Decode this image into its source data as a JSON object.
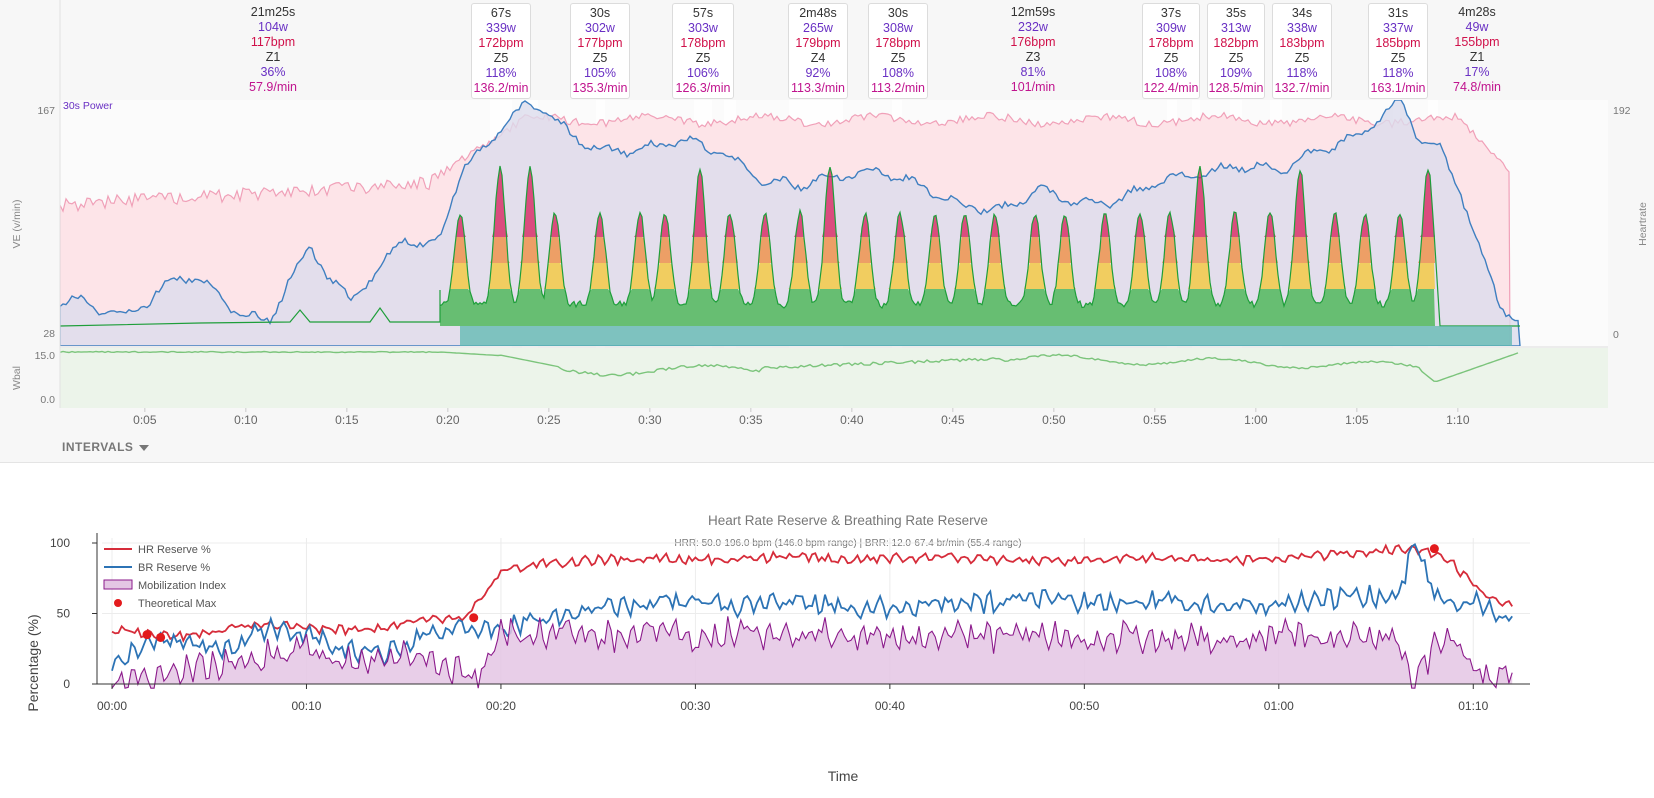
{
  "top_chart": {
    "power_label": "30s Power",
    "ve_axis_label": "VE (v/min)",
    "hr_axis_label": "Heartrate",
    "wbal_axis_label": "Wbal",
    "ve_ticks": [
      "167",
      "28"
    ],
    "hr_ticks": [
      "192",
      "0"
    ],
    "wbal_ticks": [
      "15.0",
      "0.0"
    ],
    "x_ticks": [
      "0:05",
      "0:10",
      "0:15",
      "0:20",
      "0:25",
      "0:30",
      "0:35",
      "0:40",
      "0:45",
      "0:50",
      "0:55",
      "1:00",
      "1:05",
      "1:10"
    ],
    "intervals_button": "INTERVALS"
  },
  "intervals": [
    {
      "duration": "21m25s",
      "watts": "104w",
      "hr": "117bpm",
      "zone": "Z1",
      "pct": "36%",
      "rate": "57.9/min"
    },
    {
      "duration": "67s",
      "watts": "339w",
      "hr": "172bpm",
      "zone": "Z5",
      "pct": "118%",
      "rate": "136.2/min"
    },
    {
      "duration": "30s",
      "watts": "302w",
      "hr": "177bpm",
      "zone": "Z5",
      "pct": "105%",
      "rate": "135.3/min"
    },
    {
      "duration": "57s",
      "watts": "303w",
      "hr": "178bpm",
      "zone": "Z5",
      "pct": "106%",
      "rate": "126.3/min"
    },
    {
      "duration": "2m48s",
      "watts": "265w",
      "hr": "179bpm",
      "zone": "Z4",
      "pct": "92%",
      "rate": "113.3/min"
    },
    {
      "duration": "30s",
      "watts": "308w",
      "hr": "178bpm",
      "zone": "Z5",
      "pct": "108%",
      "rate": "113.2/min"
    },
    {
      "duration": "12m59s",
      "watts": "232w",
      "hr": "176bpm",
      "zone": "Z3",
      "pct": "81%",
      "rate": "101/min"
    },
    {
      "duration": "37s",
      "watts": "309w",
      "hr": "178bpm",
      "zone": "Z5",
      "pct": "108%",
      "rate": "122.4/min"
    },
    {
      "duration": "35s",
      "watts": "313w",
      "hr": "182bpm",
      "zone": "Z5",
      "pct": "109%",
      "rate": "128.5/min"
    },
    {
      "duration": "34s",
      "watts": "338w",
      "hr": "183bpm",
      "zone": "Z5",
      "pct": "118%",
      "rate": "132.7/min"
    },
    {
      "duration": "31s",
      "watts": "337w",
      "hr": "185bpm",
      "zone": "Z5",
      "pct": "118%",
      "rate": "163.1/min"
    },
    {
      "duration": "4m28s",
      "watts": "49w",
      "hr": "155bpm",
      "zone": "Z1",
      "pct": "17%",
      "rate": "74.8/min"
    }
  ],
  "chart_data": {
    "type": "line",
    "title": "Heart Rate Reserve & Breathing Rate Reserve",
    "subtitle": "HRR: 50.0-196.0 bpm (146.0 bpm range) | BRR: 12.0-67.4 br/min (55.4 range)",
    "xlabel": "Time",
    "ylabel": "Percentage (%)",
    "ylim": [
      0,
      100
    ],
    "x_ticks": [
      "00:00",
      "00:10",
      "00:20",
      "00:30",
      "00:40",
      "00:50",
      "01:00",
      "01:10"
    ],
    "y_ticks": [
      "0",
      "50",
      "100"
    ],
    "x_range_min": [
      0,
      72
    ],
    "legend_position": "top-left",
    "grid": true,
    "x_minutes": [
      0,
      2,
      4,
      6,
      8,
      10,
      12,
      14,
      16,
      18,
      19,
      20,
      22,
      24,
      26,
      28,
      30,
      32,
      34,
      36,
      38,
      40,
      42,
      44,
      46,
      48,
      50,
      52,
      54,
      56,
      58,
      60,
      62,
      64,
      66,
      67,
      68,
      69,
      70,
      71,
      72
    ],
    "series": [
      {
        "name": "HR Reserve %",
        "color": "#d62c3a",
        "values": [
          38,
          36,
          34,
          40,
          42,
          40,
          38,
          40,
          45,
          46,
          60,
          80,
          85,
          87,
          88,
          90,
          88,
          89,
          90,
          90,
          88,
          89,
          90,
          89,
          88,
          87,
          88,
          89,
          90,
          89,
          88,
          89,
          91,
          93,
          95,
          96,
          93,
          85,
          70,
          60,
          55
        ]
      },
      {
        "name": "BR Reserve %",
        "color": "#2c73b5",
        "values": [
          15,
          30,
          28,
          25,
          40,
          35,
          25,
          20,
          35,
          40,
          38,
          40,
          45,
          52,
          55,
          58,
          60,
          55,
          58,
          57,
          54,
          55,
          56,
          57,
          58,
          60,
          58,
          58,
          60,
          57,
          57,
          55,
          60,
          62,
          62,
          96,
          65,
          55,
          60,
          52,
          48
        ]
      },
      {
        "name": "Mobilization Index",
        "color": "#8b1a8b",
        "fill": "#e4c6e4",
        "values": [
          5,
          0,
          10,
          15,
          20,
          25,
          15,
          20,
          20,
          8,
          5,
          38,
          35,
          38,
          32,
          38,
          30,
          38,
          32,
          38,
          32,
          35,
          34,
          35,
          33,
          34,
          30,
          35,
          32,
          34,
          30,
          35,
          32,
          34,
          30,
          0,
          25,
          35,
          10,
          5,
          8
        ]
      },
      {
        "name": "Theoretical Max",
        "color": "#e31a1c",
        "type": "scatter",
        "points": [
          [
            1.8,
            35
          ],
          [
            2.5,
            33
          ],
          [
            18.6,
            47
          ],
          [
            68,
            96
          ]
        ]
      }
    ]
  }
}
